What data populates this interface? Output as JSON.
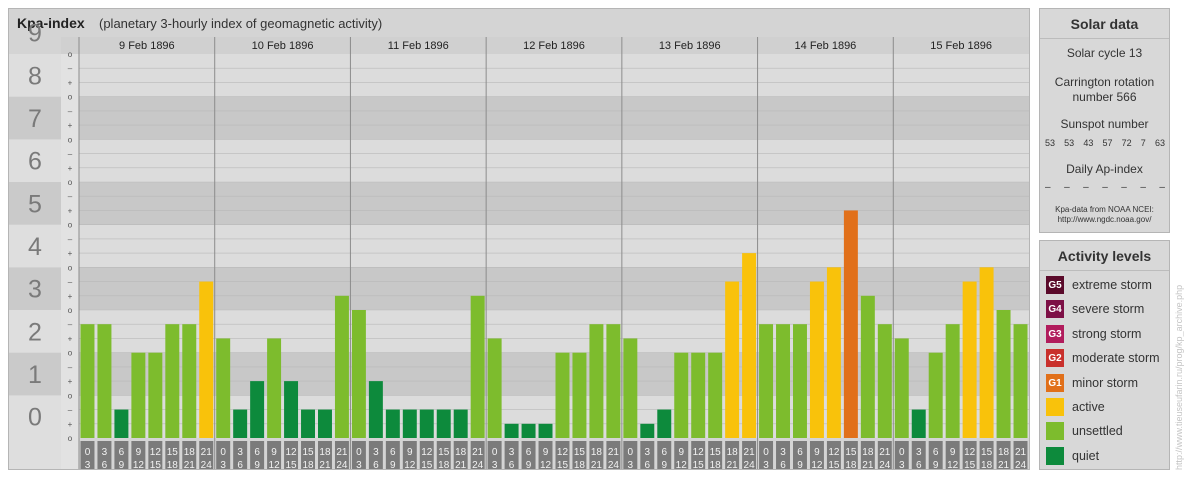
{
  "title": {
    "main": "Kpa-index",
    "subtitle": "(planetary 3-hourly index of geomagnetic activity)"
  },
  "chart_data": {
    "type": "bar",
    "y_scale": {
      "min": 0,
      "max": 9,
      "major_ticks": [
        "0",
        "1",
        "2",
        "3",
        "4",
        "5",
        "6",
        "7",
        "8",
        "9"
      ],
      "minor_tick_labels": [
        "o",
        "+",
        "–"
      ]
    },
    "days": [
      "9 Feb 1896",
      "10 Feb 1896",
      "11 Feb 1896",
      "12 Feb 1896",
      "13 Feb 1896",
      "14 Feb 1896",
      "15 Feb 1896"
    ],
    "interval_labels": [
      [
        "0",
        "3"
      ],
      [
        "3",
        "6"
      ],
      [
        "6",
        "9"
      ],
      [
        "9",
        "12"
      ],
      [
        "12",
        "15"
      ],
      [
        "15",
        "18"
      ],
      [
        "18",
        "21"
      ],
      [
        "21",
        "24"
      ]
    ],
    "values": [
      [
        2.667,
        2.667,
        0.667,
        2,
        2,
        2.667,
        2.667,
        3.667
      ],
      [
        2.333,
        0.667,
        1.333,
        2.333,
        1.333,
        0.667,
        0.667,
        3.333
      ],
      [
        3,
        1.333,
        0.667,
        0.667,
        0.667,
        0.667,
        0.667,
        3.333
      ],
      [
        2.333,
        0.333,
        0.333,
        0.333,
        2,
        2,
        2.667,
        2.667
      ],
      [
        2.333,
        0.333,
        0.667,
        2,
        2,
        2,
        3.667,
        4.333
      ],
      [
        2.667,
        2.667,
        2.667,
        3.667,
        4,
        5.333,
        3.333,
        2.667
      ],
      [
        2.333,
        0.667,
        2,
        2.667,
        3.667,
        4,
        3,
        2.667
      ]
    ],
    "colors": {
      "quiet": "#0d8a3c",
      "unsettled": "#7dbc2d",
      "active": "#f9c20b",
      "G1": "#e1701a",
      "G2": "#c9302c",
      "G3": "#b11c5c",
      "G4": "#7d1046",
      "G5": "#5a0a2a"
    },
    "grid": true
  },
  "solar": {
    "title": "Solar data",
    "cycle": "Solar cycle 13",
    "carrington_line1": "Carrington rotation",
    "carrington_line2": "number 566",
    "sunspot_title": "Sunspot number",
    "sunspots": [
      "53",
      "53",
      "43",
      "57",
      "72",
      "7",
      "63"
    ],
    "ap_title": "Daily Ap-index",
    "ap": [
      "–",
      "–",
      "–",
      "–",
      "–",
      "–",
      "–"
    ],
    "source_line1": "Kpa-data from NOAA NCEI:",
    "source_line2": "http://www.ngdc.noaa.gov/"
  },
  "activity": {
    "title": "Activity levels",
    "items": [
      {
        "code": "G5",
        "label": "extreme storm",
        "color": "#5a0a2a"
      },
      {
        "code": "G4",
        "label": "severe storm",
        "color": "#7d1046"
      },
      {
        "code": "G3",
        "label": "strong storm",
        "color": "#b11c5c"
      },
      {
        "code": "G2",
        "label": "moderate storm",
        "color": "#c9302c"
      },
      {
        "code": "G1",
        "label": "minor storm",
        "color": "#e1701a"
      },
      {
        "code": "",
        "label": "active",
        "color": "#f9c20b"
      },
      {
        "code": "",
        "label": "unsettled",
        "color": "#7dbc2d"
      },
      {
        "code": "",
        "label": "quiet",
        "color": "#0d8a3c"
      }
    ]
  },
  "watermark": "http://www.tieuseufarin.ru/prog/kp_archive.php"
}
